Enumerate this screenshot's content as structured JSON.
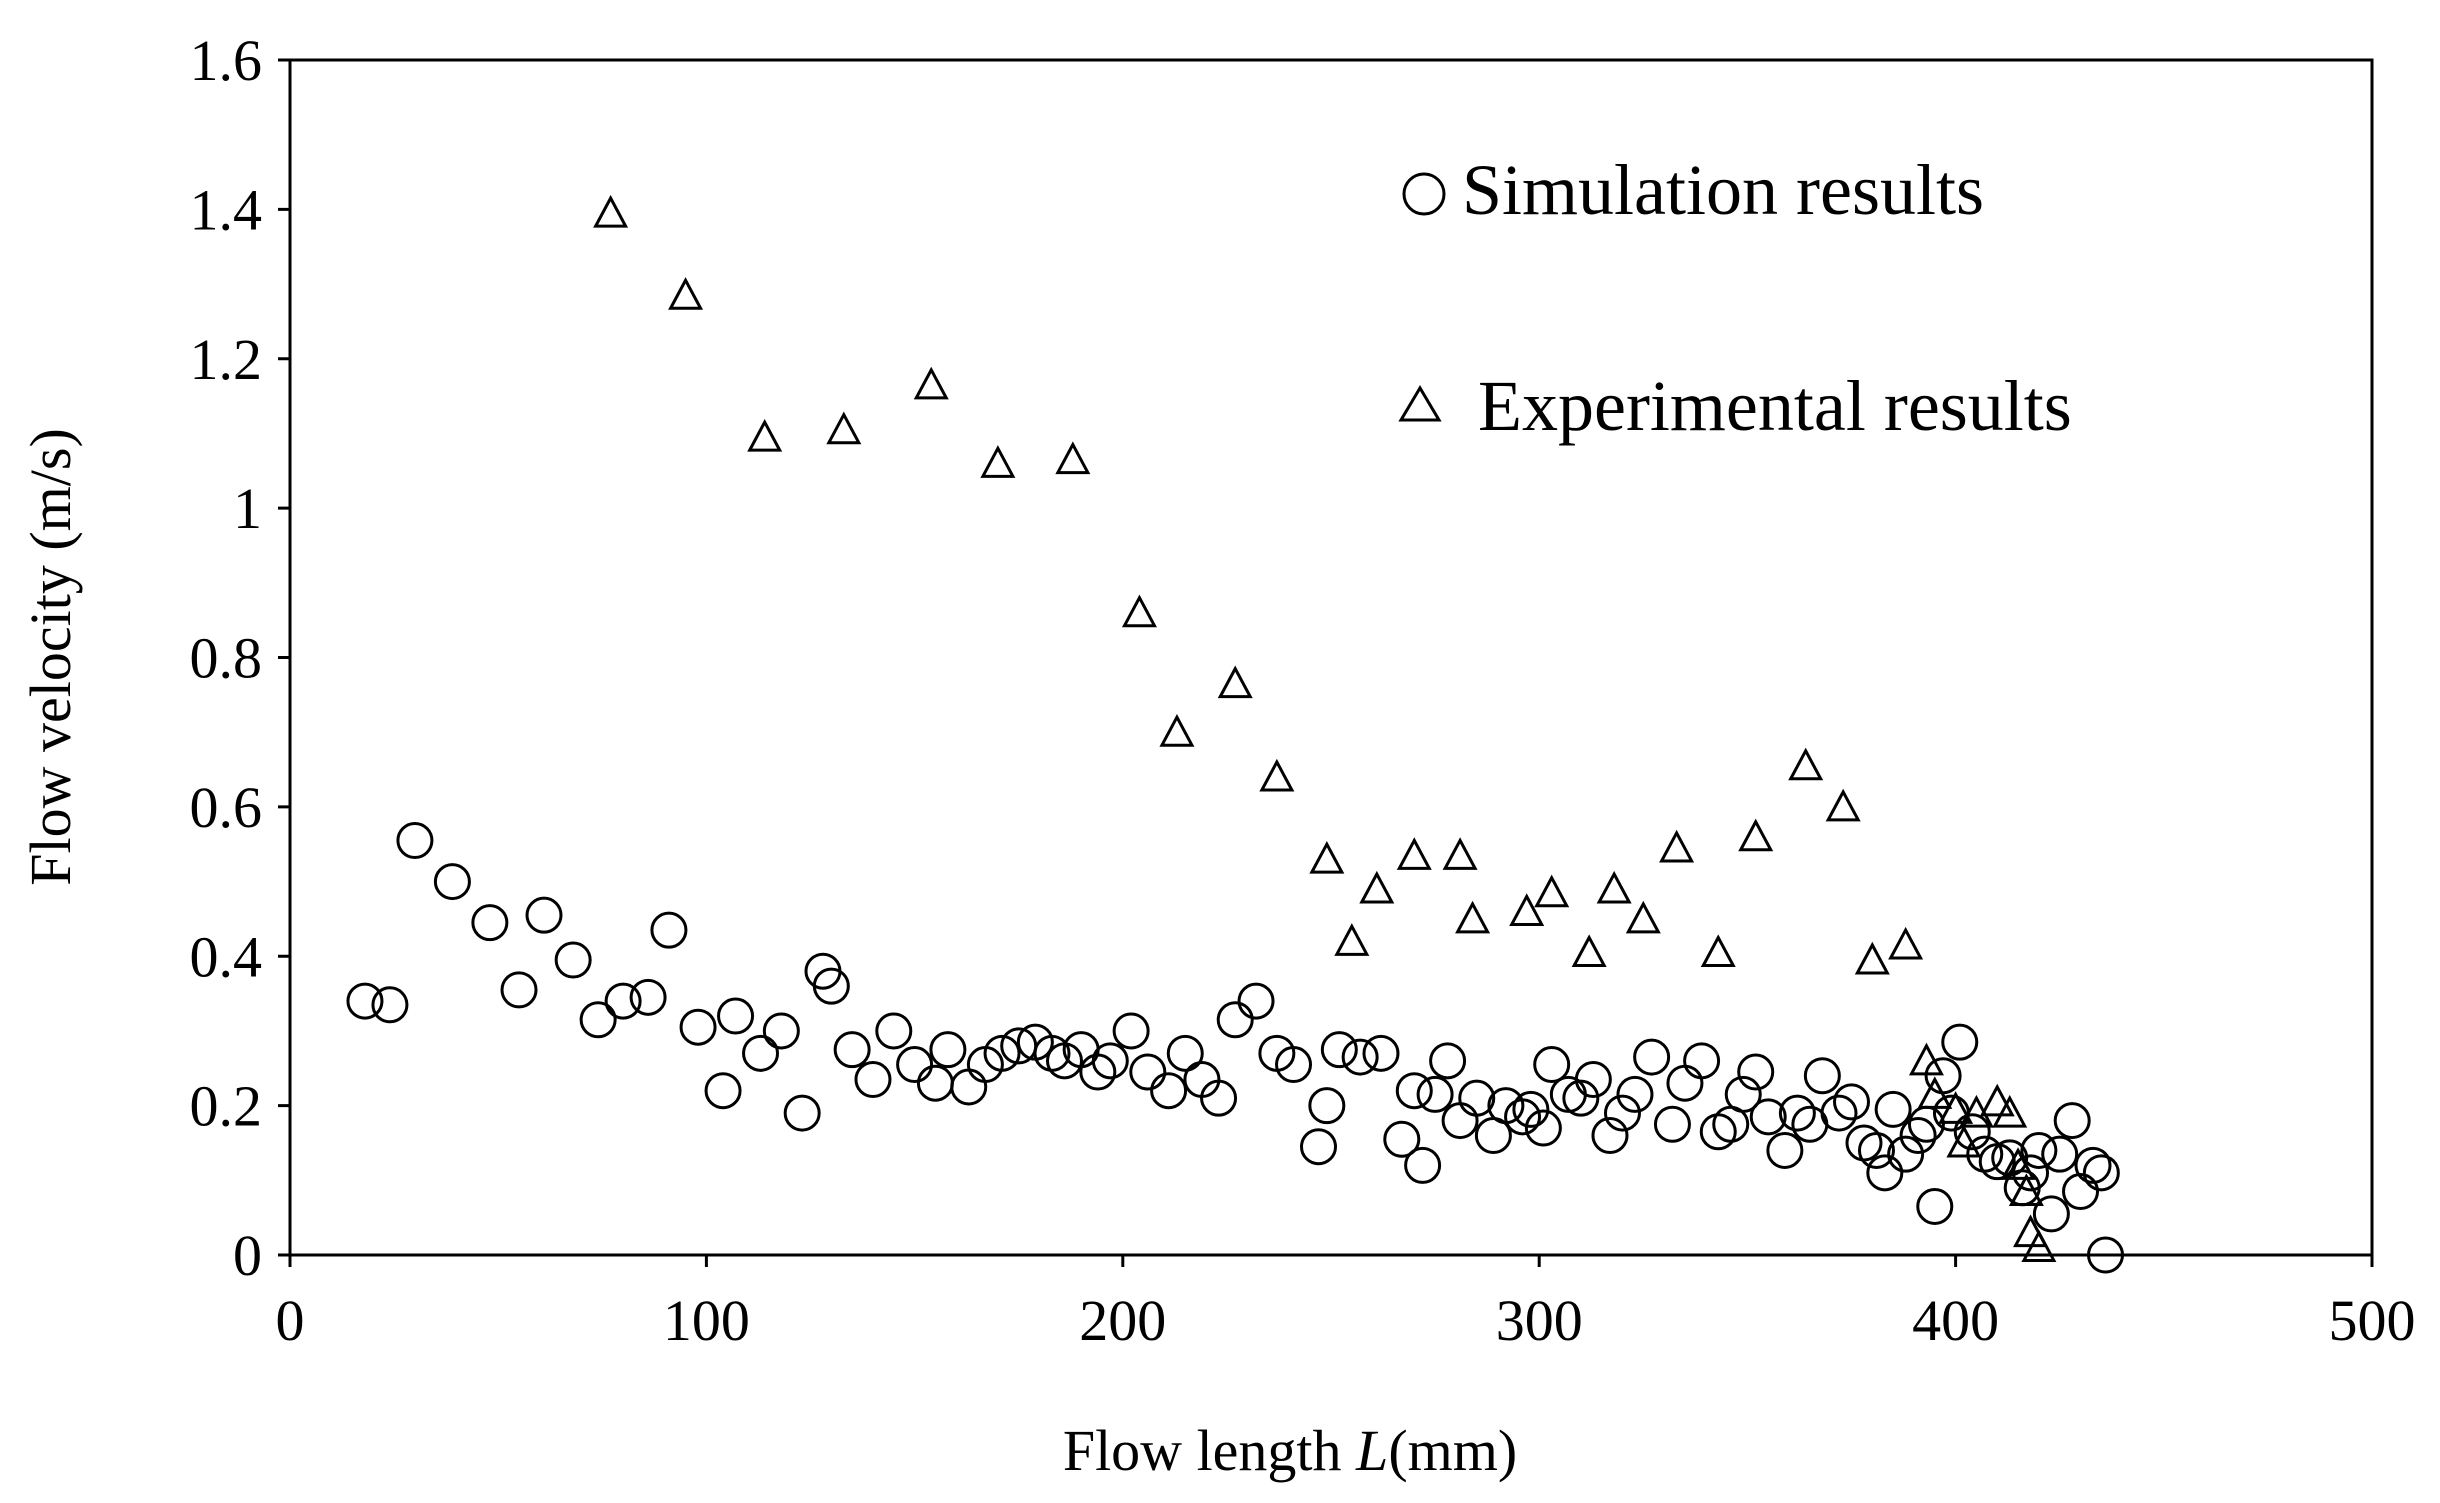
{
  "chart_data": {
    "type": "scatter",
    "title": "",
    "xlabel_prefix": "Flow length ",
    "xlabel_var": "L",
    "xlabel_suffix": "(mm)",
    "ylabel": "Flow velocity (m/s)",
    "xlim": [
      0,
      500
    ],
    "ylim": [
      0,
      1.6
    ],
    "xticks": [
      0,
      100,
      200,
      300,
      400,
      500
    ],
    "xtick_labels": [
      "0",
      "100",
      "200",
      "300",
      "400",
      "500"
    ],
    "yticks": [
      0,
      0.2,
      0.4,
      0.6,
      0.8,
      1.0,
      1.2,
      1.4,
      1.6
    ],
    "ytick_labels": [
      "0",
      "0.2",
      "0.4",
      "0.6",
      "0.8",
      "1",
      "1.2",
      "1.4",
      "1.6"
    ],
    "grid": false,
    "legend_position": "top-right",
    "series": [
      {
        "name": "Simulation results",
        "marker": "circle",
        "points": [
          [
            18,
            0.34
          ],
          [
            24,
            0.335
          ],
          [
            30,
            0.555
          ],
          [
            39,
            0.5
          ],
          [
            48,
            0.445
          ],
          [
            55,
            0.355
          ],
          [
            61,
            0.455
          ],
          [
            68,
            0.395
          ],
          [
            74,
            0.315
          ],
          [
            80,
            0.34
          ],
          [
            86,
            0.345
          ],
          [
            91,
            0.435
          ],
          [
            98,
            0.305
          ],
          [
            104,
            0.22
          ],
          [
            107,
            0.32
          ],
          [
            113,
            0.27
          ],
          [
            118,
            0.3
          ],
          [
            123,
            0.19
          ],
          [
            128,
            0.38
          ],
          [
            130,
            0.36
          ],
          [
            135,
            0.275
          ],
          [
            140,
            0.235
          ],
          [
            145,
            0.3
          ],
          [
            150,
            0.255
          ],
          [
            155,
            0.23
          ],
          [
            158,
            0.275
          ],
          [
            163,
            0.225
          ],
          [
            167,
            0.255
          ],
          [
            171,
            0.27
          ],
          [
            175,
            0.28
          ],
          [
            179,
            0.285
          ],
          [
            183,
            0.27
          ],
          [
            186,
            0.26
          ],
          [
            190,
            0.275
          ],
          [
            194,
            0.245
          ],
          [
            197,
            0.26
          ],
          [
            202,
            0.3
          ],
          [
            206,
            0.245
          ],
          [
            211,
            0.22
          ],
          [
            215,
            0.27
          ],
          [
            219,
            0.235
          ],
          [
            223,
            0.21
          ],
          [
            227,
            0.315
          ],
          [
            232,
            0.34
          ],
          [
            237,
            0.27
          ],
          [
            241,
            0.255
          ],
          [
            247,
            0.145
          ],
          [
            249,
            0.2
          ],
          [
            252,
            0.275
          ],
          [
            257,
            0.265
          ],
          [
            262,
            0.27
          ],
          [
            267,
            0.155
          ],
          [
            270,
            0.22
          ],
          [
            272,
            0.12
          ],
          [
            275,
            0.215
          ],
          [
            278,
            0.26
          ],
          [
            281,
            0.18
          ],
          [
            285,
            0.21
          ],
          [
            289,
            0.16
          ],
          [
            292,
            0.2
          ],
          [
            296,
            0.185
          ],
          [
            298,
            0.195
          ],
          [
            301,
            0.17
          ],
          [
            303,
            0.255
          ],
          [
            307,
            0.215
          ],
          [
            310,
            0.21
          ],
          [
            313,
            0.235
          ],
          [
            317,
            0.16
          ],
          [
            320,
            0.19
          ],
          [
            323,
            0.215
          ],
          [
            327,
            0.265
          ],
          [
            332,
            0.175
          ],
          [
            335,
            0.23
          ],
          [
            339,
            0.26
          ],
          [
            343,
            0.165
          ],
          [
            346,
            0.175
          ],
          [
            349,
            0.215
          ],
          [
            352,
            0.245
          ],
          [
            355,
            0.185
          ],
          [
            359,
            0.14
          ],
          [
            362,
            0.19
          ],
          [
            365,
            0.175
          ],
          [
            368,
            0.24
          ],
          [
            372,
            0.19
          ],
          [
            375,
            0.205
          ],
          [
            378,
            0.15
          ],
          [
            381,
            0.14
          ],
          [
            383,
            0.11
          ],
          [
            385,
            0.195
          ],
          [
            388,
            0.135
          ],
          [
            391,
            0.16
          ],
          [
            393,
            0.175
          ],
          [
            395,
            0.065
          ],
          [
            397,
            0.24
          ],
          [
            399,
            0.19
          ],
          [
            401,
            0.285
          ],
          [
            404,
            0.165
          ],
          [
            407,
            0.135
          ],
          [
            410,
            0.125
          ],
          [
            413,
            0.13
          ],
          [
            416,
            0.09
          ],
          [
            418,
            0.11
          ],
          [
            420,
            0.14
          ],
          [
            423,
            0.055
          ],
          [
            425,
            0.135
          ],
          [
            428,
            0.18
          ],
          [
            430,
            0.085
          ],
          [
            433,
            0.12
          ],
          [
            435,
            0.11
          ],
          [
            436,
            0.0
          ]
        ]
      },
      {
        "name": "Experimental results",
        "marker": "triangle",
        "points": [
          [
            77,
            1.395
          ],
          [
            95,
            1.285
          ],
          [
            114,
            1.095
          ],
          [
            133,
            1.105
          ],
          [
            154,
            1.165
          ],
          [
            170,
            1.06
          ],
          [
            188,
            1.065
          ],
          [
            204,
            0.86
          ],
          [
            213,
            0.7
          ],
          [
            227,
            0.765
          ],
          [
            237,
            0.64
          ],
          [
            249,
            0.53
          ],
          [
            255,
            0.42
          ],
          [
            261,
            0.49
          ],
          [
            270,
            0.535
          ],
          [
            281,
            0.535
          ],
          [
            284,
            0.45
          ],
          [
            297,
            0.46
          ],
          [
            303,
            0.485
          ],
          [
            312,
            0.405
          ],
          [
            318,
            0.49
          ],
          [
            325,
            0.45
          ],
          [
            333,
            0.545
          ],
          [
            343,
            0.405
          ],
          [
            352,
            0.56
          ],
          [
            364,
            0.655
          ],
          [
            373,
            0.6
          ],
          [
            380,
            0.395
          ],
          [
            388,
            0.415
          ],
          [
            393,
            0.26
          ],
          [
            395,
            0.215
          ],
          [
            400,
            0.195
          ],
          [
            402,
            0.15
          ],
          [
            405,
            0.19
          ],
          [
            410,
            0.205
          ],
          [
            413,
            0.19
          ],
          [
            415,
            0.12
          ],
          [
            417,
            0.085
          ],
          [
            418,
            0.03
          ],
          [
            420,
            0.01
          ]
        ]
      }
    ]
  }
}
